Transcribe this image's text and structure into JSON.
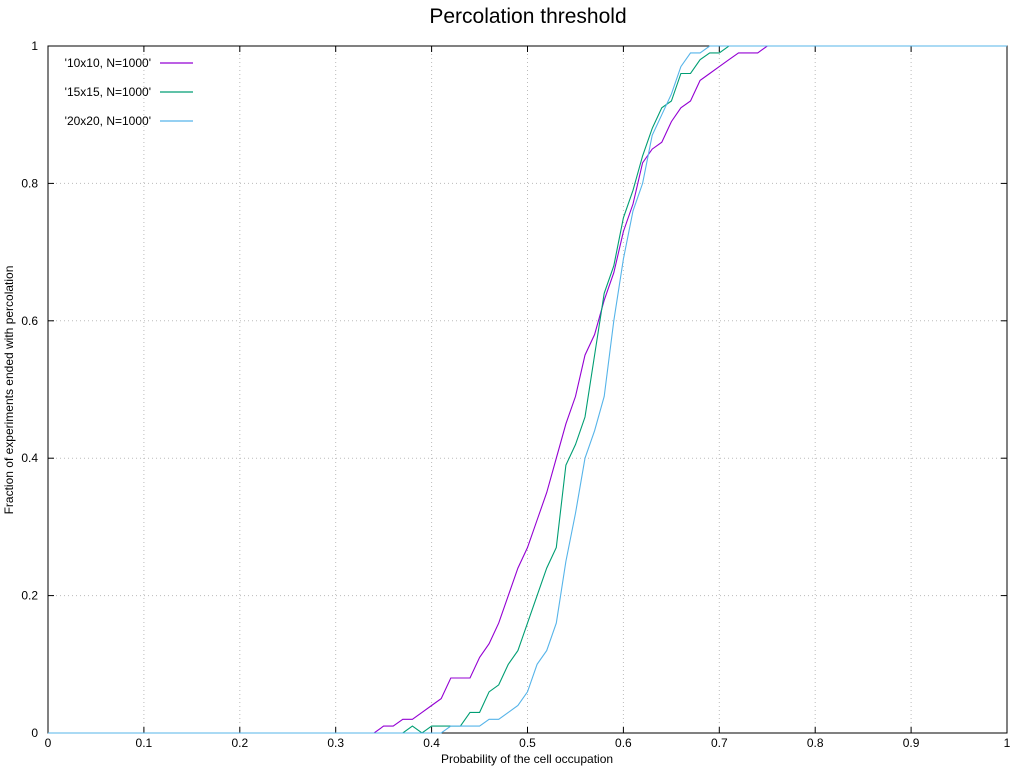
{
  "chart_data": {
    "type": "line",
    "title": "Percolation threshold",
    "xlabel": "Probability of the cell occupation",
    "ylabel": "Fraction of experiments ended with percolation",
    "xlim": [
      0,
      1
    ],
    "ylim": [
      0,
      1
    ],
    "x_ticks": [
      "0",
      "0.1",
      "0.2",
      "0.3",
      "0.4",
      "0.5",
      "0.6",
      "0.7",
      "0.8",
      "0.9",
      "1"
    ],
    "y_ticks": [
      "0",
      "0.2",
      "0.4",
      "0.6",
      "0.8",
      "1"
    ],
    "grid": true,
    "legend_position": "top-left",
    "series": [
      {
        "name": "'10x10, N=1000'",
        "color": "#9400d3",
        "x": [
          0,
          0.33,
          0.34,
          0.35,
          0.36,
          0.37,
          0.38,
          0.39,
          0.4,
          0.41,
          0.42,
          0.43,
          0.44,
          0.45,
          0.46,
          0.47,
          0.48,
          0.49,
          0.5,
          0.51,
          0.52,
          0.53,
          0.54,
          0.55,
          0.56,
          0.57,
          0.58,
          0.59,
          0.6,
          0.61,
          0.62,
          0.63,
          0.64,
          0.65,
          0.66,
          0.67,
          0.68,
          0.69,
          0.7,
          0.71,
          0.72,
          0.73,
          0.74,
          0.75,
          1.0
        ],
        "values": [
          0,
          0,
          0,
          0.01,
          0.01,
          0.02,
          0.02,
          0.03,
          0.04,
          0.05,
          0.08,
          0.08,
          0.08,
          0.11,
          0.13,
          0.16,
          0.2,
          0.24,
          0.27,
          0.31,
          0.35,
          0.4,
          0.45,
          0.49,
          0.55,
          0.58,
          0.63,
          0.67,
          0.73,
          0.77,
          0.83,
          0.85,
          0.86,
          0.89,
          0.91,
          0.92,
          0.95,
          0.96,
          0.97,
          0.98,
          0.99,
          0.99,
          0.99,
          1.0,
          1.0
        ]
      },
      {
        "name": "'15x15, N=1000'",
        "color": "#009e73",
        "x": [
          0,
          0.36,
          0.37,
          0.38,
          0.39,
          0.4,
          0.41,
          0.42,
          0.43,
          0.44,
          0.45,
          0.46,
          0.47,
          0.48,
          0.49,
          0.5,
          0.51,
          0.52,
          0.53,
          0.54,
          0.55,
          0.56,
          0.57,
          0.58,
          0.59,
          0.6,
          0.61,
          0.62,
          0.63,
          0.64,
          0.65,
          0.66,
          0.67,
          0.68,
          0.69,
          0.7,
          0.71,
          1.0
        ],
        "values": [
          0,
          0,
          0,
          0.01,
          0,
          0.01,
          0.01,
          0.01,
          0.01,
          0.03,
          0.03,
          0.06,
          0.07,
          0.1,
          0.12,
          0.16,
          0.2,
          0.24,
          0.27,
          0.39,
          0.42,
          0.46,
          0.55,
          0.64,
          0.68,
          0.75,
          0.79,
          0.84,
          0.88,
          0.91,
          0.92,
          0.96,
          0.96,
          0.98,
          0.99,
          0.99,
          1.0,
          1.0
        ]
      },
      {
        "name": "'20x20, N=1000'",
        "color": "#56b4e9",
        "x": [
          0,
          0.4,
          0.41,
          0.42,
          0.43,
          0.44,
          0.45,
          0.46,
          0.47,
          0.48,
          0.49,
          0.5,
          0.51,
          0.52,
          0.53,
          0.54,
          0.55,
          0.56,
          0.57,
          0.58,
          0.59,
          0.6,
          0.61,
          0.62,
          0.63,
          0.64,
          0.65,
          0.66,
          0.67,
          0.68,
          0.69,
          0.7,
          1.0
        ],
        "values": [
          0,
          0,
          0,
          0.01,
          0.01,
          0.01,
          0.01,
          0.02,
          0.02,
          0.03,
          0.04,
          0.06,
          0.1,
          0.12,
          0.16,
          0.25,
          0.32,
          0.4,
          0.44,
          0.49,
          0.6,
          0.69,
          0.76,
          0.8,
          0.87,
          0.9,
          0.93,
          0.97,
          0.99,
          0.99,
          1.0,
          1.0,
          1.0
        ]
      }
    ]
  }
}
